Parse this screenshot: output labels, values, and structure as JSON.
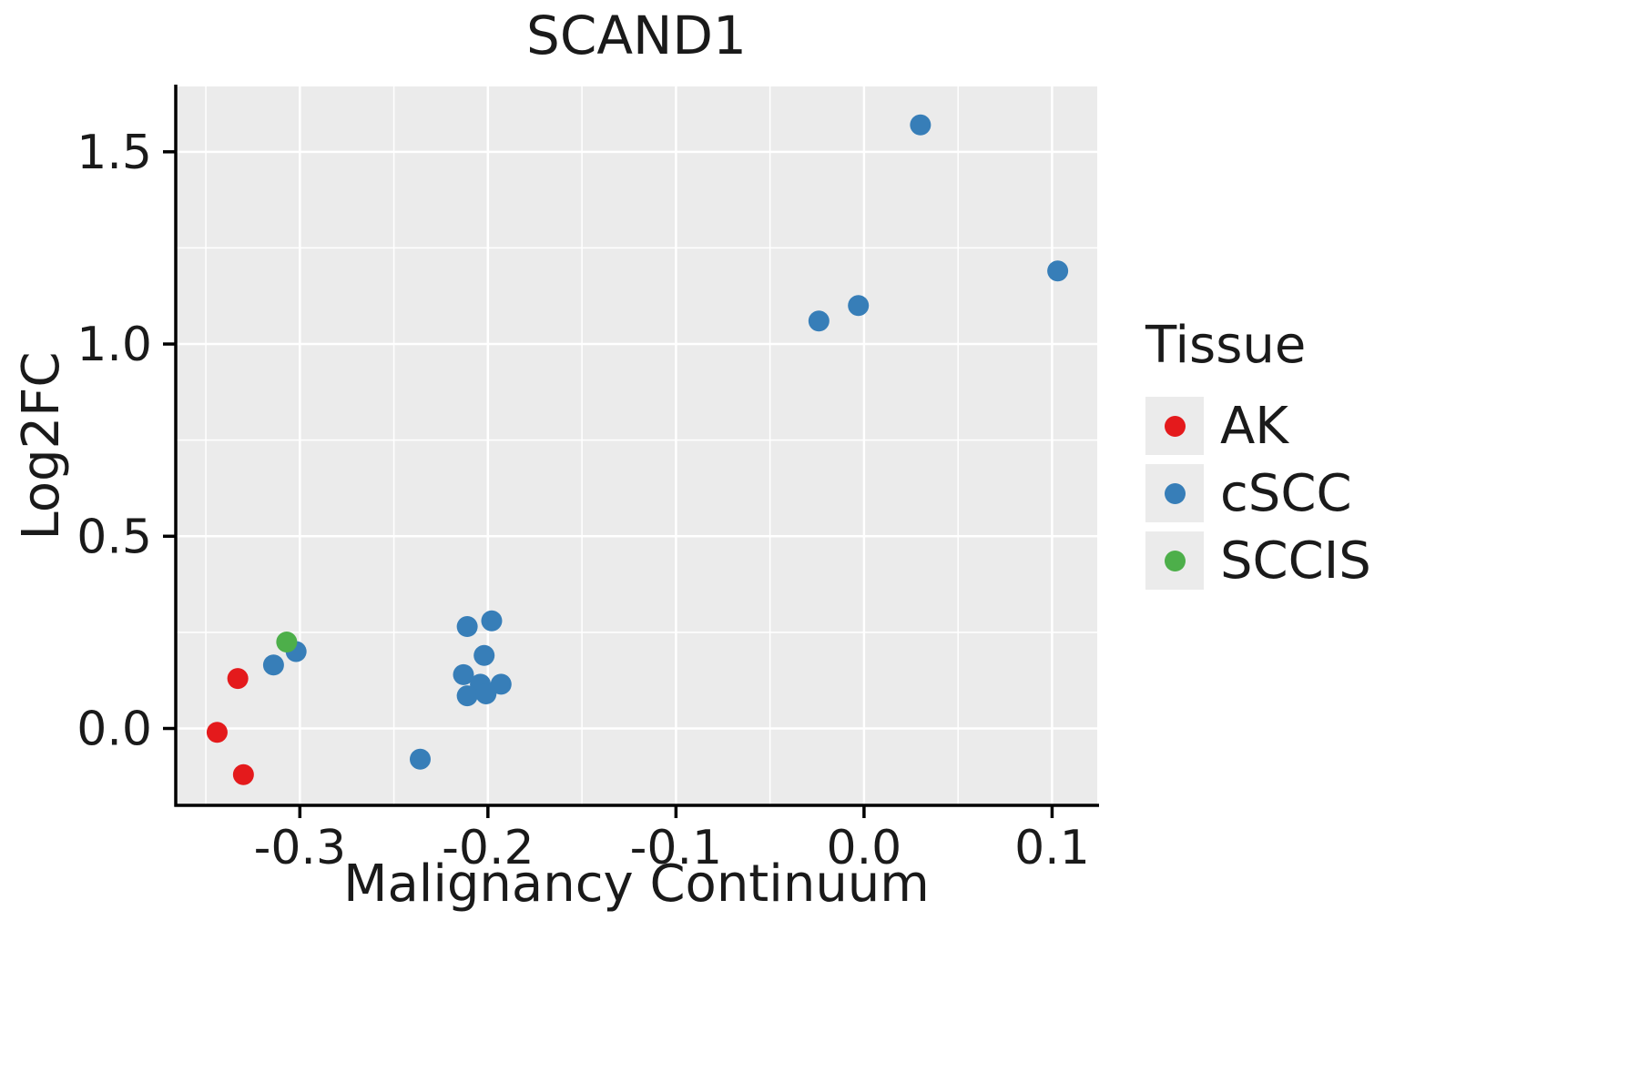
{
  "chart_data": {
    "type": "scatter",
    "title": "SCAND1",
    "xlabel": "Malignancy Continuum",
    "ylabel": "Log2FC",
    "legend_title": "Tissue",
    "legend_position": "right",
    "grid": true,
    "panel_bg": "#ebebeb",
    "grid_color": "#ffffff",
    "axis_color": "#000000",
    "text_color": "#1a1a1a",
    "xlim": [
      -0.366,
      0.124
    ],
    "ylim": [
      -0.2,
      1.67
    ],
    "x_ticks": [
      -0.3,
      -0.2,
      -0.1,
      0.0,
      0.1
    ],
    "x_tick_labels": [
      "-0.3",
      "-0.2",
      "-0.1",
      "0.0",
      "0.1"
    ],
    "x_minor_ticks": [
      -0.35,
      -0.25,
      -0.15,
      -0.05,
      0.05
    ],
    "y_ticks": [
      0.0,
      0.5,
      1.0,
      1.5
    ],
    "y_tick_labels": [
      "0.0",
      "0.5",
      "1.0",
      "1.5"
    ],
    "y_minor_ticks": [
      0.25,
      0.75,
      1.25
    ],
    "series": [
      {
        "name": "AK",
        "color": "#e41a1c",
        "points": [
          [
            -0.344,
            -0.01
          ],
          [
            -0.333,
            0.13
          ],
          [
            -0.33,
            -0.12
          ]
        ]
      },
      {
        "name": "cSCC",
        "color": "#377eb8",
        "points": [
          [
            -0.314,
            0.165
          ],
          [
            -0.302,
            0.2
          ],
          [
            -0.236,
            -0.08
          ],
          [
            -0.211,
            0.265
          ],
          [
            -0.198,
            0.28
          ],
          [
            -0.202,
            0.19
          ],
          [
            -0.213,
            0.14
          ],
          [
            -0.204,
            0.115
          ],
          [
            -0.193,
            0.115
          ],
          [
            -0.211,
            0.085
          ],
          [
            -0.201,
            0.09
          ],
          [
            -0.024,
            1.06
          ],
          [
            -0.003,
            1.1
          ],
          [
            0.03,
            1.57
          ],
          [
            0.103,
            1.19
          ]
        ]
      },
      {
        "name": "SCCIS",
        "color": "#4daf4a",
        "points": [
          [
            -0.307,
            0.225
          ]
        ]
      }
    ]
  }
}
